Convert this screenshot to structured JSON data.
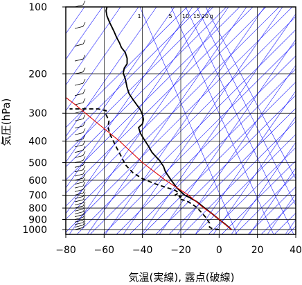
{
  "chart_data": {
    "type": "line",
    "xlabel": "気温(実線), 露点(破線)",
    "ylabel": "気圧(hPa)",
    "xlim": [
      -80,
      40
    ],
    "ylim": [
      1050,
      100
    ],
    "y_scale": "log",
    "x_ticks": [
      -80,
      -60,
      -40,
      -20,
      0,
      20,
      40
    ],
    "x_tick_labels": [
      "−80",
      "−60",
      "−40",
      "−20",
      "0",
      "20",
      "40"
    ],
    "y_ticks": [
      100,
      200,
      300,
      400,
      500,
      600,
      700,
      800,
      900,
      1000
    ],
    "y_tick_labels": [
      "100",
      "200",
      "300",
      "400",
      "500",
      "600",
      "700",
      "800",
      "900",
      "1000"
    ],
    "mixing_ratio_labels": [
      {
        "value": 1,
        "text": "1"
      },
      {
        "value": 5,
        "text": "5"
      },
      {
        "value": 10,
        "text": "10"
      },
      {
        "value": 15,
        "text": "15"
      },
      {
        "value": 20,
        "text": "20"
      },
      {
        "value": null,
        "text": "g"
      }
    ],
    "colors": {
      "temperature": "#000000",
      "dewpoint": "#000000",
      "parcel": "#e00000",
      "background_lines": "#1a1aff",
      "grid": "#000000"
    },
    "series": [
      {
        "key": "temperature",
        "style": "solid",
        "points": [
          {
            "t": 6.5,
            "p": 1000
          },
          {
            "t": 3.5,
            "p": 950
          },
          {
            "t": 0,
            "p": 900
          },
          {
            "t": -3.5,
            "p": 850
          },
          {
            "t": -7.5,
            "p": 800
          },
          {
            "t": -11.5,
            "p": 750
          },
          {
            "t": -15,
            "p": 720
          },
          {
            "t": -18,
            "p": 700
          },
          {
            "t": -22,
            "p": 650
          },
          {
            "t": -25,
            "p": 600
          },
          {
            "t": -28,
            "p": 550
          },
          {
            "t": -29,
            "p": 520
          },
          {
            "t": -30,
            "p": 505
          },
          {
            "t": -31,
            "p": 490
          },
          {
            "t": -33,
            "p": 470
          },
          {
            "t": -35,
            "p": 450
          },
          {
            "t": -37,
            "p": 420
          },
          {
            "t": -39,
            "p": 395
          },
          {
            "t": -41,
            "p": 370
          },
          {
            "t": -42,
            "p": 348
          },
          {
            "t": -40,
            "p": 335
          },
          {
            "t": -39.5,
            "p": 320
          },
          {
            "t": -40,
            "p": 305
          },
          {
            "t": -41,
            "p": 290
          },
          {
            "t": -43,
            "p": 275
          },
          {
            "t": -45,
            "p": 260
          },
          {
            "t": -47,
            "p": 245
          },
          {
            "t": -48,
            "p": 230
          },
          {
            "t": -48.5,
            "p": 220
          },
          {
            "t": -49,
            "p": 210
          },
          {
            "t": -50,
            "p": 198
          },
          {
            "t": -49.5,
            "p": 188
          },
          {
            "t": -48,
            "p": 180
          },
          {
            "t": -48,
            "p": 170
          },
          {
            "t": -49,
            "p": 160
          },
          {
            "t": -51,
            "p": 152
          },
          {
            "t": -52,
            "p": 145
          },
          {
            "t": -53.5,
            "p": 137
          },
          {
            "t": -55,
            "p": 128
          },
          {
            "t": -57,
            "p": 118
          },
          {
            "t": -58.5,
            "p": 110
          },
          {
            "t": -59,
            "p": 104
          },
          {
            "t": -58.5,
            "p": 100
          }
        ]
      },
      {
        "key": "dewpoint",
        "style": "dashed",
        "points": [
          {
            "t": 0,
            "p": 1000
          },
          {
            "t": -3.5,
            "p": 990
          },
          {
            "t": -5,
            "p": 975
          },
          {
            "t": -5,
            "p": 955
          },
          {
            "t": -5,
            "p": 935
          },
          {
            "t": -7,
            "p": 880
          },
          {
            "t": -9,
            "p": 840
          },
          {
            "t": -12,
            "p": 790
          },
          {
            "t": -15,
            "p": 760
          },
          {
            "t": -17,
            "p": 742
          },
          {
            "t": -21,
            "p": 728
          },
          {
            "t": -20,
            "p": 712
          },
          {
            "t": -23,
            "p": 700
          },
          {
            "t": -21,
            "p": 684
          },
          {
            "t": -23,
            "p": 665
          },
          {
            "t": -28,
            "p": 645
          },
          {
            "t": -34,
            "p": 620
          },
          {
            "t": -40,
            "p": 590
          },
          {
            "t": -45,
            "p": 555
          },
          {
            "t": -49,
            "p": 510
          },
          {
            "t": -51,
            "p": 470
          },
          {
            "t": -54,
            "p": 420
          },
          {
            "t": -57,
            "p": 372
          },
          {
            "t": -58,
            "p": 345
          },
          {
            "t": -57.5,
            "p": 325
          },
          {
            "t": -59,
            "p": 304
          },
          {
            "t": -59,
            "p": 292
          },
          {
            "t": -63,
            "p": 287
          },
          {
            "t": -68,
            "p": 287
          },
          {
            "t": -73,
            "p": 287
          },
          {
            "t": -78,
            "p": 287
          }
        ]
      },
      {
        "key": "parcel",
        "style": "solid",
        "points": [
          {
            "t": 6.5,
            "p": 1000
          },
          {
            "t": -3.5,
            "p": 850
          },
          {
            "t": -8,
            "p": 800
          },
          {
            "t": -16,
            "p": 700
          },
          {
            "t": -28,
            "p": 600
          },
          {
            "t": -40,
            "p": 500
          },
          {
            "t": -52,
            "p": 400
          },
          {
            "t": -64,
            "p": 330
          },
          {
            "t": -75,
            "p": 275
          },
          {
            "t": -80,
            "p": 255
          }
        ]
      }
    ]
  }
}
